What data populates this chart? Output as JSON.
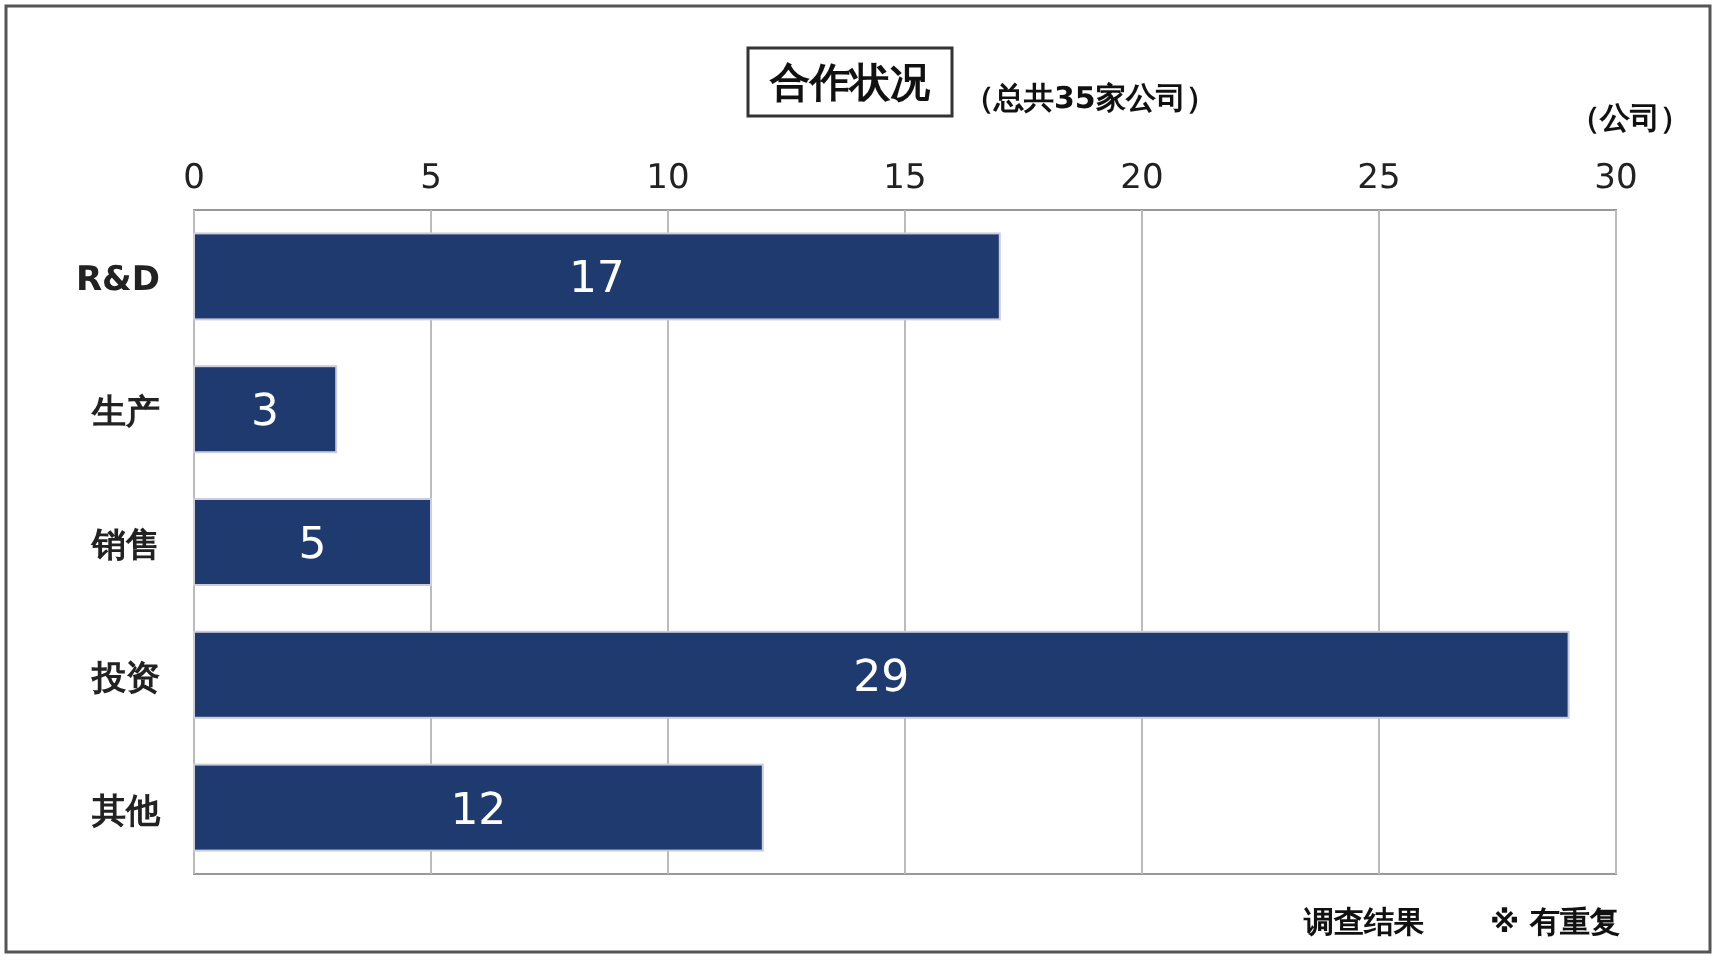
{
  "chart_data": {
    "type": "bar",
    "orientation": "horizontal",
    "title": "合作状况",
    "subtitle": "（总共35家公司）",
    "xlabel": "（公司）",
    "categories": [
      "R&D",
      "生产",
      "销售",
      "投资",
      "其他"
    ],
    "values": [
      17,
      3,
      5,
      29,
      12
    ],
    "color": "#1f3a6e",
    "xlim": [
      0,
      30
    ],
    "xticks": [
      0,
      5,
      10,
      15,
      20,
      25,
      30
    ],
    "grid": "x",
    "data_labels": true,
    "annotations": [
      "调查结果",
      "※ 有重复"
    ]
  }
}
